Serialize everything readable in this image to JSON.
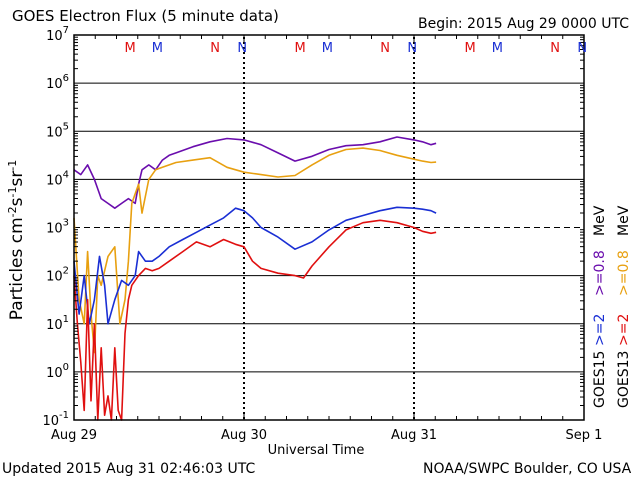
{
  "header": {
    "title": "GOES Electron Flux (5 minute data)",
    "begin": "Begin: 2015 Aug 29 0000 UTC"
  },
  "footer": {
    "updated": "Updated 2015 Aug 31 02:46:03 UTC",
    "credit": "NOAA/SWPC Boulder, CO USA"
  },
  "chart_data": {
    "type": "line",
    "title": "GOES Electron Flux (5 minute data)",
    "xlabel": "Universal Time",
    "ylabel": "Particles cm-2 s-1 sr-1",
    "yscale": "log",
    "ylim_exponent": [
      -1,
      7
    ],
    "y_ticks": [
      {
        "base": "10",
        "exp": "-1"
      },
      {
        "base": "10",
        "exp": "0"
      },
      {
        "base": "10",
        "exp": "1"
      },
      {
        "base": "10",
        "exp": "2"
      },
      {
        "base": "10",
        "exp": "3"
      },
      {
        "base": "10",
        "exp": "4"
      },
      {
        "base": "10",
        "exp": "5"
      },
      {
        "base": "10",
        "exp": "6"
      },
      {
        "base": "10",
        "exp": "7"
      }
    ],
    "x_ticks": [
      "Aug 29",
      "Aug 30",
      "Aug 31",
      "Sep 1"
    ],
    "xlim_days": [
      0,
      3
    ],
    "threshold_exponent": 3,
    "legend": [
      {
        "label": "GOES15 >=0.8 MeV",
        "color": "#6a0dad"
      },
      {
        "label": "GOES15 >=2 MeV",
        "color": "#1a2fd4"
      },
      {
        "label": "GOES13 >=0.8 MeV",
        "color": "#e8a010"
      },
      {
        "label": "GOES13 >=2 MeV",
        "color": "#e01010"
      }
    ],
    "legend_text": {
      "goes15": "GOES15",
      "goes13": "GOES13",
      "g15_2": ">=2",
      "g15_08": ">=0.8",
      "g13_2": ">=2",
      "g13_08": ">=0.8",
      "unit": "MeV"
    },
    "local_noon_markers": [
      {
        "label": "M",
        "color": "#e01010",
        "day": 0.33
      },
      {
        "label": "M",
        "color": "#1a2fd4",
        "day": 0.49
      },
      {
        "label": "N",
        "color": "#e01010",
        "day": 0.83
      },
      {
        "label": "N",
        "color": "#1a2fd4",
        "day": 0.99
      },
      {
        "label": "M",
        "color": "#e01010",
        "day": 1.33
      },
      {
        "label": "M",
        "color": "#1a2fd4",
        "day": 1.49
      },
      {
        "label": "N",
        "color": "#e01010",
        "day": 1.83
      },
      {
        "label": "N",
        "color": "#1a2fd4",
        "day": 1.99
      },
      {
        "label": "M",
        "color": "#e01010",
        "day": 2.33
      },
      {
        "label": "M",
        "color": "#1a2fd4",
        "day": 2.49
      },
      {
        "label": "N",
        "color": "#e01010",
        "day": 2.83
      },
      {
        "label": "N",
        "color": "#1a2fd4",
        "day": 2.99
      }
    ],
    "dashed_verticals_days": [
      1.0,
      2.0
    ],
    "series": [
      {
        "name": "GOES15 >=0.8 MeV",
        "color": "#6a0dad",
        "x": [
          0.0,
          0.04,
          0.08,
          0.12,
          0.16,
          0.2,
          0.24,
          0.28,
          0.32,
          0.36,
          0.38,
          0.4,
          0.44,
          0.48,
          0.52,
          0.56,
          0.6,
          0.7,
          0.8,
          0.9,
          1.0,
          1.1,
          1.2,
          1.3,
          1.4,
          1.5,
          1.6,
          1.7,
          1.8,
          1.9,
          2.0,
          2.05,
          2.1,
          2.13
        ],
        "y": [
          4.2,
          4.1,
          4.3,
          4.0,
          3.6,
          3.5,
          3.4,
          3.5,
          3.6,
          3.5,
          3.9,
          4.2,
          4.3,
          4.2,
          4.4,
          4.5,
          4.55,
          4.68,
          4.78,
          4.85,
          4.82,
          4.72,
          4.55,
          4.38,
          4.48,
          4.62,
          4.7,
          4.72,
          4.78,
          4.88,
          4.82,
          4.78,
          4.72,
          4.75
        ]
      },
      {
        "name": "GOES13 >=0.8 MeV",
        "color": "#e8a010",
        "x": [
          0.0,
          0.03,
          0.06,
          0.08,
          0.1,
          0.12,
          0.14,
          0.16,
          0.2,
          0.24,
          0.27,
          0.3,
          0.32,
          0.34,
          0.38,
          0.4,
          0.44,
          0.48,
          0.52,
          0.6,
          0.7,
          0.8,
          0.9,
          1.0,
          1.1,
          1.2,
          1.3,
          1.4,
          1.5,
          1.6,
          1.7,
          1.8,
          1.9,
          2.0,
          2.05,
          2.1,
          2.13
        ],
        "y": [
          3.2,
          1.5,
          1.0,
          2.5,
          1.2,
          0.4,
          2.0,
          1.8,
          2.4,
          2.6,
          1.0,
          1.5,
          2.3,
          3.5,
          3.9,
          3.3,
          4.0,
          4.2,
          4.25,
          4.35,
          4.4,
          4.45,
          4.25,
          4.15,
          4.1,
          4.05,
          4.08,
          4.3,
          4.5,
          4.62,
          4.65,
          4.6,
          4.5,
          4.42,
          4.38,
          4.35,
          4.36
        ]
      },
      {
        "name": "GOES15 >=2 MeV",
        "color": "#1a2fd4",
        "x": [
          0.0,
          0.03,
          0.06,
          0.09,
          0.12,
          0.15,
          0.18,
          0.2,
          0.24,
          0.28,
          0.32,
          0.36,
          0.38,
          0.42,
          0.46,
          0.5,
          0.56,
          0.64,
          0.72,
          0.8,
          0.88,
          0.95,
          1.0,
          1.05,
          1.1,
          1.2,
          1.3,
          1.4,
          1.5,
          1.6,
          1.7,
          1.8,
          1.9,
          2.0,
          2.05,
          2.1,
          2.13
        ],
        "y": [
          2.3,
          1.2,
          2.0,
          1.0,
          1.5,
          2.4,
          1.8,
          1.0,
          1.5,
          1.9,
          1.8,
          2.0,
          2.5,
          2.3,
          2.3,
          2.4,
          2.6,
          2.75,
          2.9,
          3.05,
          3.2,
          3.4,
          3.35,
          3.2,
          3.0,
          2.8,
          2.55,
          2.7,
          2.95,
          3.15,
          3.25,
          3.35,
          3.42,
          3.4,
          3.38,
          3.35,
          3.3
        ]
      },
      {
        "name": "GOES13 >=2 MeV",
        "color": "#e01010",
        "x": [
          0.0,
          0.02,
          0.04,
          0.06,
          0.08,
          0.1,
          0.12,
          0.14,
          0.16,
          0.18,
          0.2,
          0.22,
          0.24,
          0.26,
          0.28,
          0.3,
          0.32,
          0.34,
          0.38,
          0.42,
          0.46,
          0.5,
          0.56,
          0.64,
          0.72,
          0.8,
          0.88,
          0.95,
          1.0,
          1.05,
          1.1,
          1.2,
          1.3,
          1.35,
          1.4,
          1.5,
          1.6,
          1.7,
          1.8,
          1.9,
          2.0,
          2.05,
          2.1,
          2.13
        ],
        "y": [
          2.0,
          1.0,
          0.2,
          -0.8,
          1.5,
          -0.6,
          1.0,
          -1.0,
          0.5,
          -0.9,
          -0.5,
          -1.0,
          0.5,
          -0.8,
          -1.0,
          0.8,
          1.5,
          1.8,
          2.0,
          2.15,
          2.1,
          2.15,
          2.3,
          2.5,
          2.7,
          2.6,
          2.75,
          2.65,
          2.6,
          2.3,
          2.15,
          2.05,
          2.0,
          1.95,
          2.2,
          2.6,
          2.95,
          3.1,
          3.15,
          3.1,
          3.0,
          2.92,
          2.88,
          2.9
        ]
      }
    ]
  }
}
